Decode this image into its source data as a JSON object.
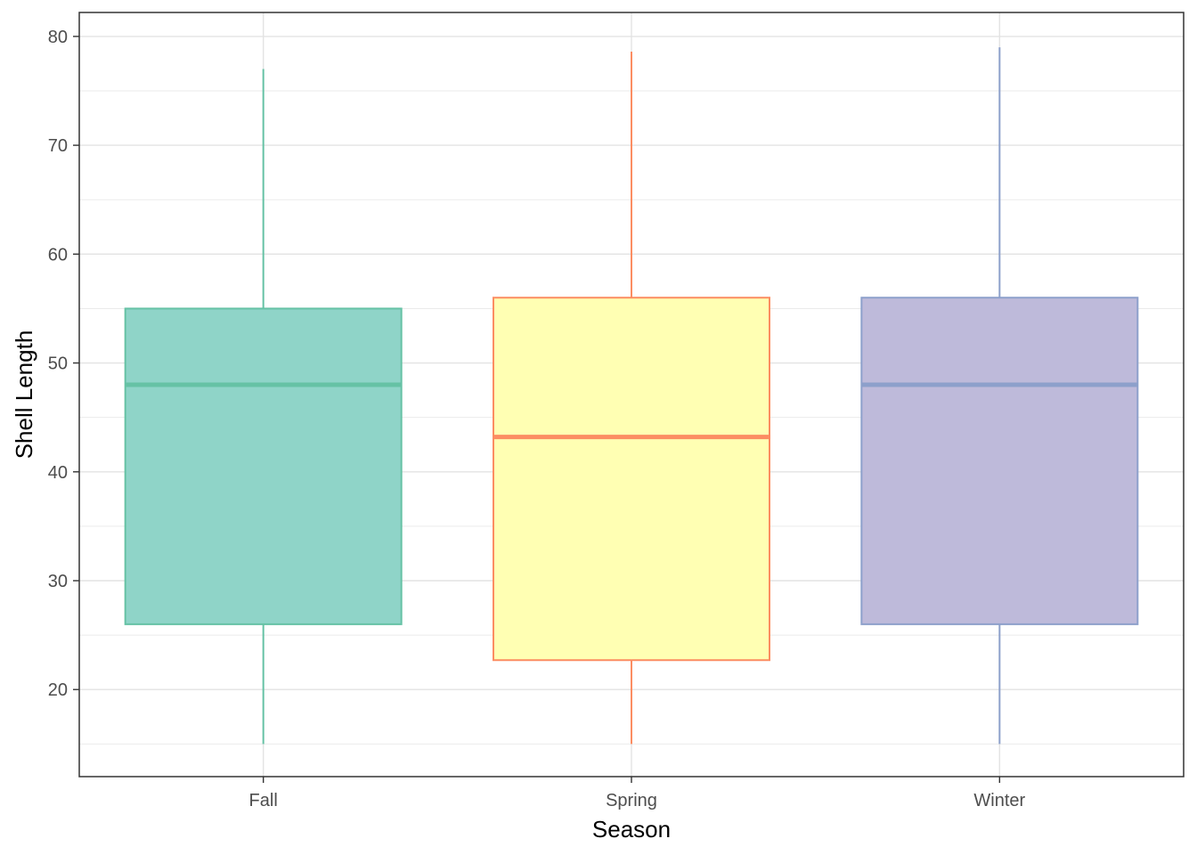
{
  "chart_data": {
    "type": "boxplot",
    "title": "",
    "xlabel": "Season",
    "ylabel": "Shell Length",
    "categories": [
      "Fall",
      "Spring",
      "Winter"
    ],
    "boxes": [
      {
        "category": "Fall",
        "min": 15,
        "q1": 26,
        "median": 48,
        "q3": 55,
        "max": 77,
        "fill": "#8fd4c8",
        "stroke": "#66c2a5"
      },
      {
        "category": "Spring",
        "min": 15,
        "q1": 22.7,
        "median": 43.2,
        "q3": 56,
        "max": 78.6,
        "fill": "#ffffb3",
        "stroke": "#fc8d62"
      },
      {
        "category": "Winter",
        "min": 15,
        "q1": 26,
        "median": 48,
        "q3": 56,
        "max": 79,
        "fill": "#bebada",
        "stroke": "#8da0cb"
      }
    ],
    "ylim": [
      12,
      82.2
    ],
    "yticks": [
      20,
      30,
      40,
      50,
      60,
      70,
      80
    ],
    "grid": true,
    "legend": "none"
  }
}
